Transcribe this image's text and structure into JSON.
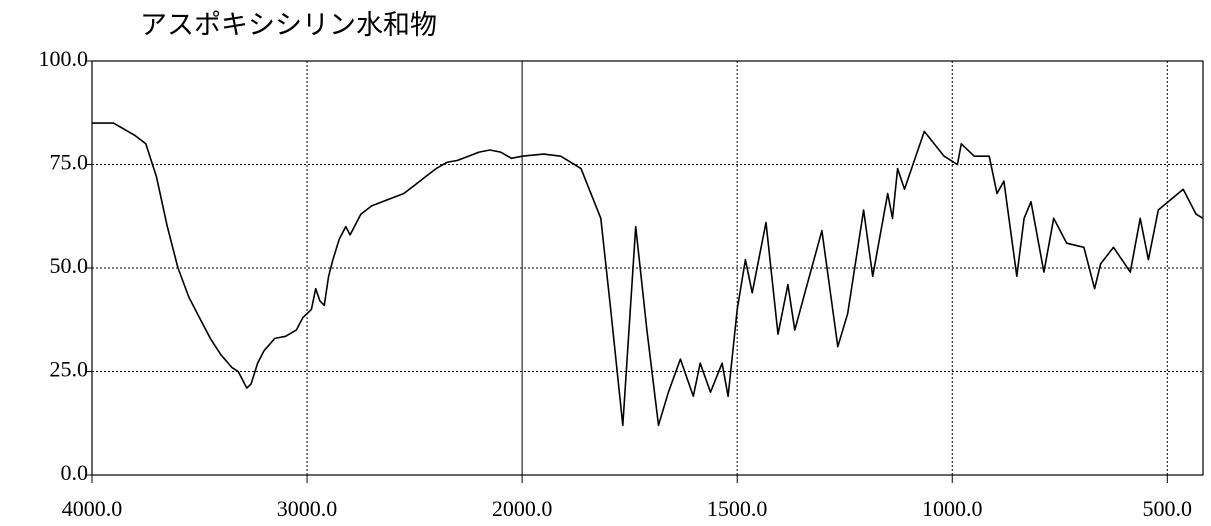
{
  "chart_data": {
    "type": "line",
    "title": "アスポキシシリン水和物",
    "xlim": [
      4000,
      417
    ],
    "ylim": [
      0,
      100
    ],
    "x_scale_break": {
      "at": 2000,
      "expansion": 2
    },
    "xticks": [
      {
        "value": 4000,
        "label": "4000.0"
      },
      {
        "value": 3000,
        "label": "3000.0"
      },
      {
        "value": 2000,
        "label": "2000.0"
      },
      {
        "value": 1500,
        "label": "1500.0"
      },
      {
        "value": 1000,
        "label": "1000.0"
      },
      {
        "value": 500,
        "label": "500.0"
      }
    ],
    "yticks": [
      {
        "value": 0,
        "label": "0.0"
      },
      {
        "value": 25,
        "label": "25.0"
      },
      {
        "value": 50,
        "label": "50.0"
      },
      {
        "value": 75,
        "label": "75.0"
      },
      {
        "value": 100,
        "label": "100.0"
      }
    ],
    "grid": true,
    "x": [
      4000,
      3900,
      3800,
      3750,
      3700,
      3650,
      3600,
      3550,
      3500,
      3450,
      3400,
      3350,
      3320,
      3300,
      3280,
      3260,
      3230,
      3200,
      3150,
      3100,
      3050,
      3020,
      2980,
      2960,
      2940,
      2920,
      2900,
      2880,
      2850,
      2820,
      2800,
      2780,
      2750,
      2700,
      2650,
      2600,
      2550,
      2500,
      2450,
      2400,
      2350,
      2300,
      2250,
      2200,
      2150,
      2100,
      2050,
      2000,
      1950,
      1910,
      1863,
      1817,
      1794,
      1766,
      1736,
      1710,
      1683,
      1660,
      1632,
      1602,
      1586,
      1562,
      1535,
      1521,
      1500,
      1481,
      1465,
      1433,
      1405,
      1382,
      1366,
      1340,
      1303,
      1266,
      1243,
      1206,
      1185,
      1150,
      1139,
      1127,
      1111,
      1065,
      1019,
      988,
      979,
      949,
      914,
      896,
      880,
      850,
      833,
      817,
      787,
      764,
      734,
      694,
      669,
      655,
      625,
      586,
      563,
      544,
      521,
      463,
      433,
      417
    ],
    "series": [
      {
        "color": "#000000",
        "values": [
          85,
          85,
          82,
          80,
          72,
          60,
          50,
          43,
          38,
          33,
          29,
          26,
          25,
          23,
          21,
          22,
          27,
          30,
          33,
          33.5,
          35,
          38,
          40,
          45,
          42,
          41,
          48,
          52,
          57,
          60,
          58,
          60,
          63,
          65,
          66,
          67,
          68,
          70,
          72,
          74,
          75.5,
          76,
          77,
          78,
          78.5,
          78,
          76.5,
          77,
          77.5,
          77,
          74,
          62,
          40,
          12,
          60,
          35,
          12,
          20,
          28,
          19,
          27,
          20,
          27,
          19,
          40,
          52,
          44,
          61,
          34,
          46,
          35,
          45,
          59,
          31,
          39,
          64,
          48,
          68,
          62,
          74,
          69,
          83,
          77,
          75,
          80,
          77,
          77,
          68,
          71,
          48,
          62,
          66,
          49,
          62,
          56,
          55,
          45,
          51,
          55,
          49,
          62,
          52,
          64,
          69,
          63,
          62
        ]
      }
    ]
  }
}
